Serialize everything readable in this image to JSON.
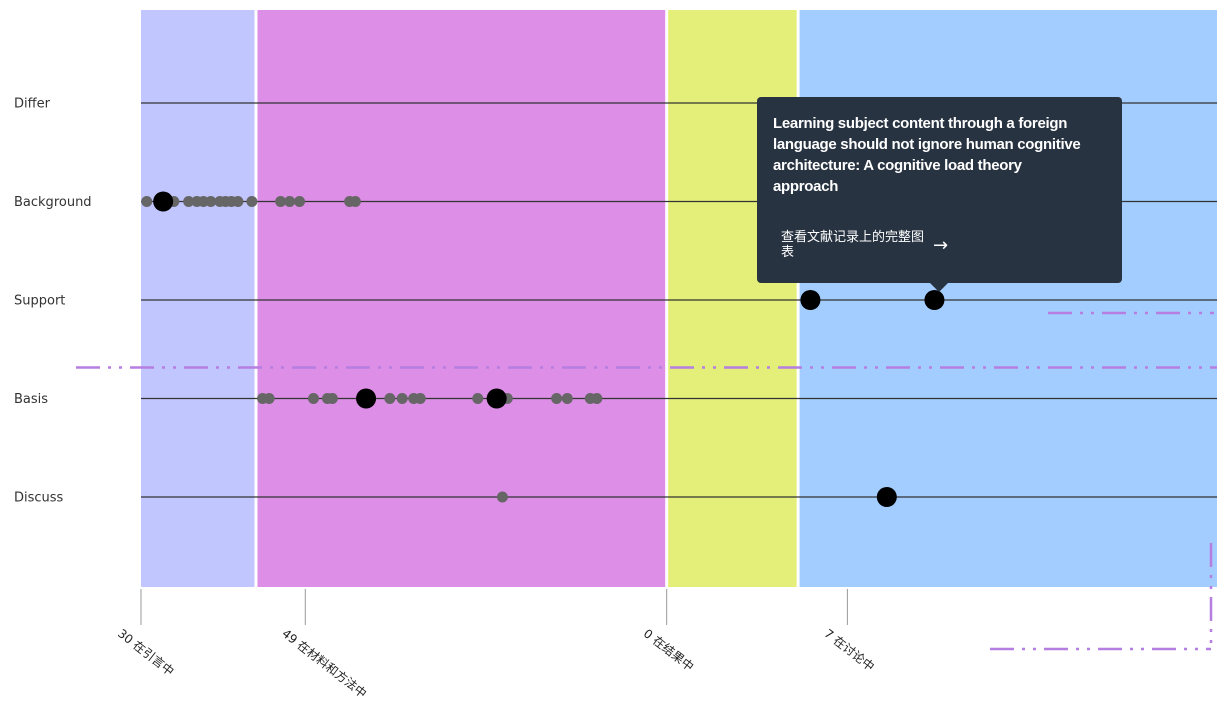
{
  "chart_data": {
    "type": "scatter",
    "rows": [
      "Differ",
      "Background",
      "Support",
      "Basis",
      "Discuss"
    ],
    "sections": [
      {
        "name": "30 在引言中",
        "start": 0,
        "end": 14,
        "tick": 0,
        "color": "#c2c6ff"
      },
      {
        "name": "49 在材料和方法中",
        "start": 14,
        "end": 64,
        "tick": 20,
        "color": "#dd8ee6"
      },
      {
        "name": "0 在结果中",
        "start": 64,
        "end": 80,
        "tick": 64,
        "color": "#e3ef78"
      },
      {
        "name": "7 在讨论中",
        "start": 80,
        "end": 131,
        "tick": 86,
        "color": "#a3cdfe"
      }
    ],
    "xlim": [
      0,
      131
    ],
    "points": [
      {
        "row": "Differ",
        "x": 86,
        "size": "small",
        "highlight": true
      },
      {
        "row": "Background",
        "x": 0.7,
        "size": "medium"
      },
      {
        "row": "Background",
        "x": 2.7,
        "size": "large"
      },
      {
        "row": "Background",
        "x": 4.0,
        "size": "medium"
      },
      {
        "row": "Background",
        "x": 5.8,
        "size": "medium"
      },
      {
        "row": "Background",
        "x": 6.8,
        "size": "medium"
      },
      {
        "row": "Background",
        "x": 7.6,
        "size": "medium"
      },
      {
        "row": "Background",
        "x": 8.5,
        "size": "medium"
      },
      {
        "row": "Background",
        "x": 9.6,
        "size": "medium"
      },
      {
        "row": "Background",
        "x": 10.3,
        "size": "medium"
      },
      {
        "row": "Background",
        "x": 11.0,
        "size": "medium"
      },
      {
        "row": "Background",
        "x": 11.8,
        "size": "medium"
      },
      {
        "row": "Background",
        "x": 13.5,
        "size": "medium"
      },
      {
        "row": "Background",
        "x": 17.0,
        "size": "medium"
      },
      {
        "row": "Background",
        "x": 18.1,
        "size": "medium"
      },
      {
        "row": "Background",
        "x": 19.3,
        "size": "medium"
      },
      {
        "row": "Background",
        "x": 25.4,
        "size": "medium"
      },
      {
        "row": "Background",
        "x": 26.1,
        "size": "medium"
      },
      {
        "row": "Support",
        "x": 81.5,
        "size": "large"
      },
      {
        "row": "Support",
        "x": 96.6,
        "size": "large"
      },
      {
        "row": "Basis",
        "x": 14.8,
        "size": "medium"
      },
      {
        "row": "Basis",
        "x": 15.6,
        "size": "medium"
      },
      {
        "row": "Basis",
        "x": 21.0,
        "size": "medium"
      },
      {
        "row": "Basis",
        "x": 22.7,
        "size": "medium"
      },
      {
        "row": "Basis",
        "x": 23.3,
        "size": "medium"
      },
      {
        "row": "Basis",
        "x": 27.4,
        "size": "large"
      },
      {
        "row": "Basis",
        "x": 30.3,
        "size": "medium"
      },
      {
        "row": "Basis",
        "x": 31.8,
        "size": "medium"
      },
      {
        "row": "Basis",
        "x": 33.2,
        "size": "medium"
      },
      {
        "row": "Basis",
        "x": 34.0,
        "size": "medium"
      },
      {
        "row": "Basis",
        "x": 41.0,
        "size": "medium"
      },
      {
        "row": "Basis",
        "x": 43.3,
        "size": "large"
      },
      {
        "row": "Basis",
        "x": 44.6,
        "size": "medium"
      },
      {
        "row": "Basis",
        "x": 50.6,
        "size": "medium"
      },
      {
        "row": "Basis",
        "x": 51.9,
        "size": "medium"
      },
      {
        "row": "Basis",
        "x": 54.7,
        "size": "medium"
      },
      {
        "row": "Basis",
        "x": 55.5,
        "size": "medium"
      },
      {
        "row": "Discuss",
        "x": 44.0,
        "size": "medium"
      },
      {
        "row": "Discuss",
        "x": 90.8,
        "size": "large"
      }
    ]
  },
  "tooltip": {
    "title": "Learning subject content through a foreign language should not ignore human cognitive architecture: A cognitive load theory approach",
    "link_label": "查看文献记录上的完整图表",
    "arrow_icon": "arrow-right-icon"
  },
  "colors": {
    "row_line": "#333333",
    "dot": "#666666",
    "dot_highlight": "#000000",
    "tooltip_bg": "#283341",
    "dash_decoration": "#b57ee0"
  }
}
